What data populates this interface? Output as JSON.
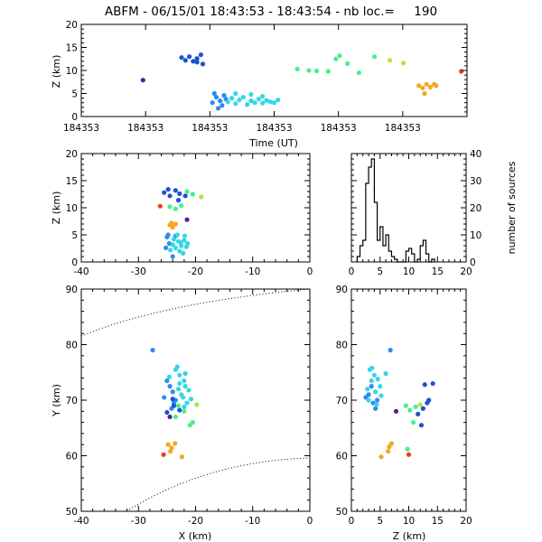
{
  "title": "ABFM - 06/15/01 18:43:53 - 18:43:54 - nb loc.=     190",
  "chart_data": [
    {
      "id": "time_height",
      "type": "scatter",
      "xlabel": "Time (UT)",
      "ylabel": "Z (km)",
      "xlim": [
        0,
        1
      ],
      "ylim": [
        0,
        20
      ],
      "x_tick_labels": [
        "184353",
        "184353",
        "184353",
        "184353",
        "184353",
        "184353",
        "184353"
      ],
      "y_ticks": [
        0,
        5,
        10,
        15,
        20
      ],
      "series": [
        {
          "color": "#1f4fd8",
          "points": [
            [
              0.26,
              12.8
            ],
            [
              0.27,
              12.2
            ],
            [
              0.28,
              13.0
            ],
            [
              0.29,
              12.0
            ],
            [
              0.3,
              12.6
            ],
            [
              0.31,
              13.4
            ],
            [
              0.315,
              11.4
            ],
            [
              0.3,
              11.8
            ]
          ]
        },
        {
          "color": "#5a1a9a",
          "points": [
            [
              0.16,
              7.9
            ]
          ]
        },
        {
          "color": "#2a8cf0",
          "points": [
            [
              0.345,
              5.0
            ],
            [
              0.35,
              4.2
            ],
            [
              0.36,
              3.4
            ],
            [
              0.37,
              4.6
            ],
            [
              0.355,
              1.8
            ],
            [
              0.365,
              2.4
            ],
            [
              0.375,
              3.8
            ],
            [
              0.34,
              3.0
            ]
          ]
        },
        {
          "color": "#35d6e6",
          "points": [
            [
              0.38,
              3.2
            ],
            [
              0.39,
              4.0
            ],
            [
              0.4,
              2.8
            ],
            [
              0.41,
              3.6
            ],
            [
              0.42,
              4.2
            ],
            [
              0.43,
              2.6
            ],
            [
              0.44,
              3.4
            ],
            [
              0.45,
              3.0
            ],
            [
              0.46,
              3.8
            ],
            [
              0.47,
              2.9
            ],
            [
              0.48,
              3.5
            ],
            [
              0.49,
              3.2
            ],
            [
              0.5,
              3.0
            ],
            [
              0.51,
              3.6
            ],
            [
              0.4,
              5.0
            ],
            [
              0.44,
              4.8
            ],
            [
              0.47,
              4.4
            ]
          ]
        },
        {
          "color": "#46f08a",
          "points": [
            [
              0.56,
              10.3
            ],
            [
              0.59,
              10.0
            ],
            [
              0.61,
              9.9
            ],
            [
              0.64,
              9.8
            ],
            [
              0.66,
              12.5
            ],
            [
              0.67,
              13.2
            ],
            [
              0.69,
              11.5
            ],
            [
              0.72,
              9.5
            ],
            [
              0.76,
              13.0
            ]
          ]
        },
        {
          "color": "#a8e83a",
          "points": [
            [
              0.8,
              12.2
            ],
            [
              0.835,
              11.6
            ]
          ]
        },
        {
          "color": "#f5a623",
          "points": [
            [
              0.875,
              6.7
            ],
            [
              0.885,
              6.2
            ],
            [
              0.895,
              7.0
            ],
            [
              0.905,
              6.4
            ],
            [
              0.915,
              7.0
            ],
            [
              0.92,
              6.7
            ],
            [
              0.89,
              5.0
            ]
          ]
        },
        {
          "color": "#e8401a",
          "points": [
            [
              0.985,
              9.8
            ]
          ]
        }
      ]
    },
    {
      "id": "x_height",
      "type": "scatter",
      "xlabel": "",
      "ylabel": "Z (km)",
      "xlim": [
        -40,
        0
      ],
      "ylim": [
        0,
        20
      ],
      "x_ticks": [
        -40,
        -30,
        -20,
        -10,
        0
      ],
      "y_ticks": [
        0,
        5,
        10,
        15,
        20
      ],
      "series": [
        {
          "color": "#1f4fd8",
          "points": [
            [
              -25.5,
              12.8
            ],
            [
              -24.5,
              12.2
            ],
            [
              -23.5,
              13.2
            ],
            [
              -22.8,
              12.6
            ],
            [
              -24.8,
              13.4
            ],
            [
              -21.8,
              12.2
            ],
            [
              -23.0,
              11.4
            ]
          ]
        },
        {
          "color": "#5a1a9a",
          "points": [
            [
              -21.5,
              7.8
            ]
          ]
        },
        {
          "color": "#e8401a",
          "points": [
            [
              -26.2,
              10.3
            ]
          ]
        },
        {
          "color": "#f5a623",
          "points": [
            [
              -24.5,
              6.8
            ],
            [
              -24.0,
              6.4
            ],
            [
              -23.5,
              7.0
            ],
            [
              -24.2,
              7.2
            ]
          ]
        },
        {
          "color": "#46f08a",
          "points": [
            [
              -24.5,
              10.2
            ],
            [
              -23.5,
              9.8
            ],
            [
              -21.5,
              13.0
            ],
            [
              -20.5,
              12.5
            ],
            [
              -22.5,
              10.4
            ]
          ]
        },
        {
          "color": "#a8e83a",
          "points": [
            [
              -19.0,
              12.0
            ]
          ]
        },
        {
          "color": "#2a8cf0",
          "points": [
            [
              -25.0,
              4.6
            ],
            [
              -24.6,
              3.4
            ],
            [
              -25.2,
              2.6
            ],
            [
              -24.0,
              1.0
            ],
            [
              -23.5,
              4.8
            ],
            [
              -24.8,
              5.0
            ]
          ]
        },
        {
          "color": "#35d6e6",
          "points": [
            [
              -24.0,
              3.2
            ],
            [
              -23.5,
              2.6
            ],
            [
              -23.0,
              3.8
            ],
            [
              -22.5,
              3.0
            ],
            [
              -22.0,
              4.0
            ],
            [
              -21.6,
              2.8
            ],
            [
              -22.8,
              2.0
            ],
            [
              -23.8,
              4.2
            ],
            [
              -21.4,
              3.4
            ],
            [
              -22.2,
              1.6
            ],
            [
              -23.2,
              5.0
            ],
            [
              -21.9,
              4.8
            ],
            [
              -24.4,
              2.2
            ],
            [
              -22.6,
              3.6
            ]
          ]
        }
      ]
    },
    {
      "id": "height_histogram",
      "type": "bar",
      "xlabel": "",
      "ylabel": "number of sources",
      "xlim": [
        0,
        20
      ],
      "ylim": [
        0,
        40
      ],
      "x_ticks": [
        0,
        5,
        10,
        15,
        20
      ],
      "y_ticks": [
        0,
        10,
        20,
        30,
        40
      ],
      "bin_width": 0.5,
      "bin_starts": [
        1,
        1.5,
        2,
        2.5,
        3,
        3.5,
        4,
        4.5,
        5,
        5.5,
        6,
        6.5,
        7,
        7.5,
        8,
        8.5,
        9,
        9.5,
        10,
        10.5,
        11,
        11.5,
        12,
        12.5,
        13,
        13.5,
        14
      ],
      "counts": [
        2,
        6,
        8,
        29,
        35,
        38,
        22,
        8,
        13,
        6,
        10,
        4,
        2,
        1,
        0,
        0,
        0,
        4,
        5,
        3,
        0,
        1,
        6,
        8,
        3,
        0,
        1
      ]
    },
    {
      "id": "plan_view",
      "type": "scatter",
      "xlabel": "X (km)",
      "ylabel": "Y (km)",
      "xlim": [
        -40,
        0
      ],
      "ylim": [
        50,
        90
      ],
      "x_ticks": [
        -40,
        -30,
        -20,
        -10,
        0
      ],
      "y_ticks": [
        50,
        60,
        70,
        80,
        90
      ],
      "series": [
        {
          "color": "#2a8cf0",
          "points": [
            [
              -27.5,
              79.0
            ],
            [
              -24.5,
              72.5
            ],
            [
              -25.0,
              73.5
            ],
            [
              -24.0,
              71.5
            ],
            [
              -25.5,
              70.5
            ],
            [
              -23.8,
              69.5
            ],
            [
              -24.2,
              68.5
            ],
            [
              -23.5,
              70.0
            ]
          ]
        },
        {
          "color": "#1f4fd8",
          "points": [
            [
              -25.0,
              67.8
            ],
            [
              -23.8,
              69.0
            ],
            [
              -22.8,
              68.2
            ],
            [
              -24.0,
              70.2
            ]
          ]
        },
        {
          "color": "#35d6e6",
          "points": [
            [
              -23.5,
              75.5
            ],
            [
              -22.8,
              74.5
            ],
            [
              -22.0,
              73.5
            ],
            [
              -23.0,
              72.0
            ],
            [
              -22.5,
              71.0
            ],
            [
              -21.8,
              72.5
            ],
            [
              -22.2,
              70.5
            ],
            [
              -21.5,
              69.5
            ],
            [
              -22.8,
              73.0
            ],
            [
              -21.2,
              71.8
            ],
            [
              -23.2,
              76.0
            ],
            [
              -21.8,
              74.8
            ],
            [
              -20.8,
              70.2
            ],
            [
              -22.0,
              68.8
            ],
            [
              -24.6,
              74.2
            ]
          ]
        },
        {
          "color": "#46f08a",
          "points": [
            [
              -23.0,
              69.0
            ],
            [
              -22.0,
              68.0
            ],
            [
              -21.0,
              65.5
            ],
            [
              -20.5,
              66.0
            ],
            [
              -23.5,
              67.0
            ]
          ]
        },
        {
          "color": "#a8e83a",
          "points": [
            [
              -19.8,
              69.2
            ]
          ]
        },
        {
          "color": "#5a1a9a",
          "points": [
            [
              -24.5,
              67.0
            ]
          ]
        },
        {
          "color": "#f5a623",
          "points": [
            [
              -24.8,
              62.0
            ],
            [
              -24.2,
              61.4
            ],
            [
              -23.6,
              62.2
            ],
            [
              -24.4,
              60.8
            ],
            [
              -22.4,
              59.8
            ]
          ]
        },
        {
          "color": "#e8401a",
          "points": [
            [
              -25.6,
              60.2
            ]
          ]
        }
      ]
    },
    {
      "id": "z_plan",
      "type": "scatter",
      "xlabel": "Z (km)",
      "ylabel": "",
      "xlim": [
        0,
        20
      ],
      "ylim": [
        50,
        90
      ],
      "x_ticks": [
        0,
        5,
        10,
        15,
        20
      ],
      "y_ticks": [
        50,
        60,
        70,
        80,
        90
      ],
      "series": [
        {
          "color": "#2a8cf0",
          "points": [
            [
              6.8,
              79.0
            ],
            [
              3.5,
              72.5
            ],
            [
              3.0,
              71.0
            ],
            [
              2.5,
              70.5
            ],
            [
              4.5,
              70.0
            ],
            [
              3.8,
              69.5
            ],
            [
              4.2,
              68.5
            ]
          ]
        },
        {
          "color": "#35d6e6",
          "points": [
            [
              3.2,
              75.5
            ],
            [
              4.0,
              74.5
            ],
            [
              3.5,
              73.5
            ],
            [
              2.8,
              72.0
            ],
            [
              4.2,
              71.5
            ],
            [
              3.0,
              70.0
            ],
            [
              5.0,
              72.5
            ],
            [
              4.6,
              73.8
            ],
            [
              3.6,
              75.8
            ],
            [
              5.2,
              70.8
            ],
            [
              4.4,
              69.2
            ],
            [
              6.0,
              74.8
            ]
          ]
        },
        {
          "color": "#1f4fd8",
          "points": [
            [
              13.2,
              69.5
            ],
            [
              12.5,
              68.5
            ],
            [
              13.5,
              70.0
            ],
            [
              12.8,
              72.8
            ],
            [
              14.2,
              73.0
            ],
            [
              11.6,
              67.5
            ],
            [
              12.2,
              65.5
            ]
          ]
        },
        {
          "color": "#46f08a",
          "points": [
            [
              9.5,
              69.0
            ],
            [
              10.2,
              68.2
            ],
            [
              10.8,
              66.0
            ],
            [
              11.2,
              68.8
            ],
            [
              9.8,
              61.2
            ]
          ]
        },
        {
          "color": "#a8e83a",
          "points": [
            [
              12.0,
              69.2
            ]
          ]
        },
        {
          "color": "#5a1a9a",
          "points": [
            [
              7.8,
              68.0
            ]
          ]
        },
        {
          "color": "#f5a623",
          "points": [
            [
              6.6,
              61.6
            ],
            [
              7.0,
              62.2
            ],
            [
              6.4,
              60.8
            ],
            [
              5.2,
              59.8
            ]
          ]
        },
        {
          "color": "#e8401a",
          "points": [
            [
              10.0,
              60.2
            ]
          ]
        }
      ]
    }
  ]
}
